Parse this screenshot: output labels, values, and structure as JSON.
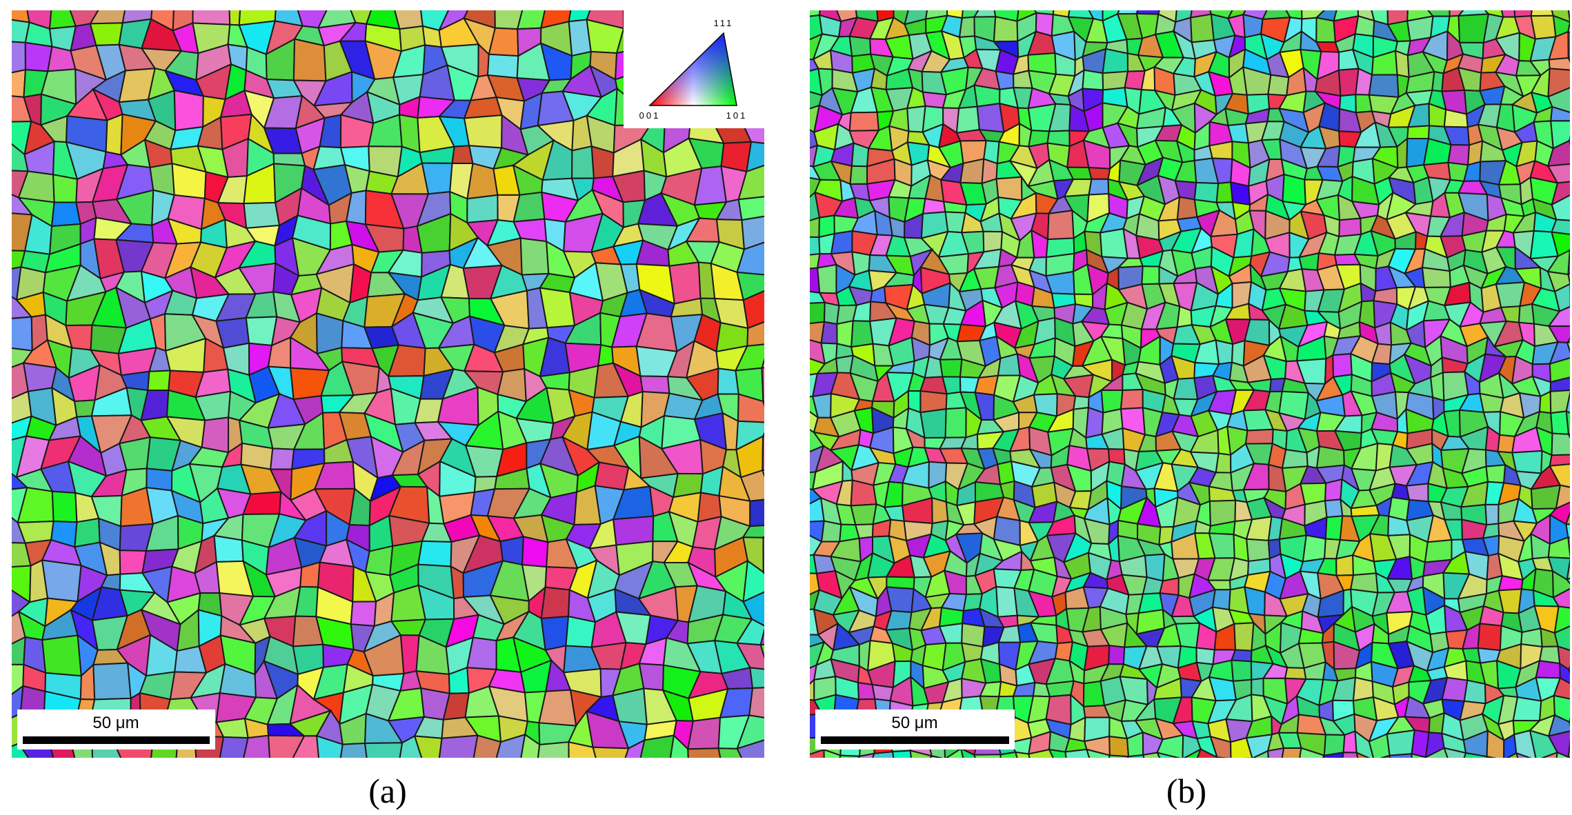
{
  "panels": [
    {
      "caption": "(a)",
      "scale_bar": "50 μm"
    },
    {
      "caption": "(b)",
      "scale_bar": "50 μm"
    }
  ],
  "legend": {
    "top": "111",
    "left": "001",
    "right": "101"
  }
}
